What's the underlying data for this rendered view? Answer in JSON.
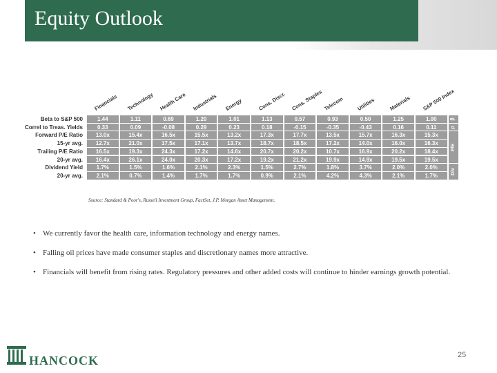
{
  "header": {
    "title": "Equity Outlook"
  },
  "table": {
    "columns": [
      "Financials",
      "Technology",
      "Health Care",
      "Industrials",
      "Energy",
      "Cons. Discr.",
      "Cons. Staples",
      "Telecom",
      "Utilities",
      "Materials",
      "S&P 500 Index"
    ],
    "rows": [
      {
        "label": "Beta to S&P 500",
        "cells": [
          "1.44",
          "1.11",
          "0.69",
          "1.20",
          "1.01",
          "1.13",
          "0.57",
          "0.93",
          "0.50",
          "1.25",
          "1.00"
        ]
      },
      {
        "label": "Correl to Treas. Yields",
        "cells": [
          "0.33",
          "0.09",
          "-0.08",
          "0.29",
          "0.23",
          "0.18",
          "-0.15",
          "-0.35",
          "-0.43",
          "0.16",
          "0.11"
        ]
      },
      {
        "label": "Forward P/E Ratio",
        "cells": [
          "13.0x",
          "15.4x",
          "16.5x",
          "15.5x",
          "13.2x",
          "17.3x",
          "17.7x",
          "13.5x",
          "15.7x",
          "16.3x",
          "15.3x"
        ]
      },
      {
        "label": "15-yr avg.",
        "cells": [
          "12.7x",
          "21.0x",
          "17.5x",
          "17.1x",
          "13.7x",
          "18.7x",
          "18.5x",
          "17.2x",
          "14.0x",
          "16.0x",
          "16.3x"
        ]
      },
      {
        "label": "Trailing P/E Ratio",
        "cells": [
          "16.5x",
          "19.3x",
          "24.3x",
          "17.2x",
          "14.6x",
          "20.7x",
          "20.2x",
          "10.7x",
          "16.9x",
          "20.2x",
          "18.4x"
        ]
      },
      {
        "label": "20-yr avg.",
        "cells": [
          "16.4x",
          "26.1x",
          "24.0x",
          "20.3x",
          "17.2x",
          "19.2x",
          "21.2x",
          "19.9x",
          "14.9x",
          "19.5x",
          "19.5x"
        ]
      },
      {
        "label": "Dividend Yield",
        "cells": [
          "1.7%",
          "1.5%",
          "1.6%",
          "2.1%",
          "2.3%",
          "1.5%",
          "2.7%",
          "1.8%",
          "3.7%",
          "2.0%",
          "2.0%"
        ]
      },
      {
        "label": "20-yr avg.",
        "cells": [
          "2.1%",
          "0.7%",
          "1.4%",
          "1.7%",
          "1.7%",
          "0.9%",
          "2.1%",
          "4.2%",
          "4.3%",
          "2.1%",
          "1.7%"
        ]
      }
    ],
    "groups": [
      "β",
      "ρ",
      "P/E",
      "Div"
    ]
  },
  "source": "Source: Standard & Poor's, Russell Investment Group, FactSet, J.P. Morgan Asset Management.",
  "bullets": [
    "We currently favor the health care, information technology and energy names.",
    "Falling oil prices have made consumer staples and discretionary names more attractive.",
    "Financials will benefit from rising rates. Regulatory pressures and other added costs will continue to hinder earnings growth potential."
  ],
  "footer": {
    "logo": "HANCOCK",
    "page_number": "25"
  }
}
